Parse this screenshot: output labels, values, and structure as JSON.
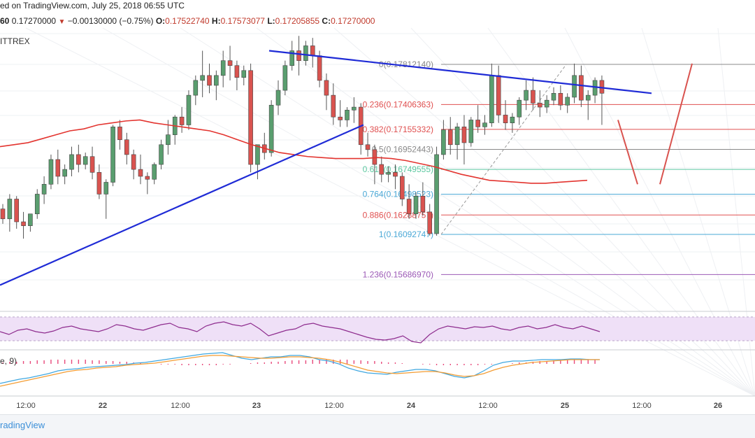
{
  "header": {
    "text": "ed on TradingView.com, July 25, 2018 06:55 UTC"
  },
  "ohlc": {
    "interval": "60",
    "last": "0.17270000",
    "change": "−0.00130000 (−0.75%)",
    "o_label": "O:",
    "o": "0.17522740",
    "h_label": "H:",
    "h": "0.17573077",
    "l_label": "L:",
    "l": "0.17205855",
    "c_label": "C:",
    "c": "0.17270000"
  },
  "exchange": "ITTREX",
  "footer": {
    "brand": "radingView"
  },
  "macd_label": "e, 9)",
  "colors": {
    "bull": "#5a9e6f",
    "bear": "#d9534f",
    "ma": "#e3342f",
    "trend": "#1f2bd6",
    "fib_red": "#e05050",
    "fib_gray": "#888888",
    "fib_green": "#5cc8a0",
    "fib_blue": "#4aa8d6",
    "fib_purple": "#9b59b6",
    "rsi_fill": "#efe0f7",
    "rsi_line": "#8e2c8e",
    "macd_blue": "#3fa7e0",
    "macd_orange": "#f39c33",
    "macd_hist": "#e8497b"
  },
  "chart_data": {
    "type": "candlestick",
    "x_ticks": [
      "12:00",
      "22",
      "12:00",
      "23",
      "12:00",
      "24",
      "12:00",
      "25",
      "12:00",
      "26"
    ],
    "fib_levels": [
      {
        "label": "0(0.17812140)",
        "value": 0.1781214,
        "color": "fib_gray"
      },
      {
        "label": "0.236(0.17406363)",
        "value": 0.17406363,
        "color": "fib_red"
      },
      {
        "label": "0.382(0.17155332)",
        "value": 0.17155332,
        "color": "fib_red"
      },
      {
        "label": "0.5(0.16952443)",
        "value": 0.16952443,
        "color": "fib_gray"
      },
      {
        "label": "0.618(0.16749555)",
        "value": 0.16749555,
        "color": "fib_green"
      },
      {
        "label": "0.764(0.16498523)",
        "value": 0.16498523,
        "color": "fib_blue"
      },
      {
        "label": "0.886(0.16288757)",
        "value": 0.16288757,
        "color": "fib_red"
      },
      {
        "label": "1(0.16092747)",
        "value": 0.16092747,
        "color": "fib_blue"
      },
      {
        "label": "1.236(0.15686970)",
        "value": 0.1568697,
        "color": "fib_purple"
      }
    ],
    "candles": [
      [
        0.1635,
        0.164,
        0.1625,
        0.162
      ],
      [
        0.1625,
        0.165,
        0.1645,
        0.1612
      ],
      [
        0.1645,
        0.1648,
        0.1622,
        0.1615
      ],
      [
        0.1622,
        0.1632,
        0.1618,
        0.1605
      ],
      [
        0.1618,
        0.1628,
        0.163,
        0.1612
      ],
      [
        0.163,
        0.1655,
        0.165,
        0.1625
      ],
      [
        0.165,
        0.1668,
        0.166,
        0.164
      ],
      [
        0.166,
        0.169,
        0.1685,
        0.1655
      ],
      [
        0.1685,
        0.1695,
        0.1668,
        0.166
      ],
      [
        0.1668,
        0.168,
        0.1675,
        0.166
      ],
      [
        0.1675,
        0.1698,
        0.169,
        0.1668
      ],
      [
        0.169,
        0.17,
        0.168,
        0.1672
      ],
      [
        0.168,
        0.1692,
        0.1688,
        0.1675
      ],
      [
        0.1688,
        0.1698,
        0.1672,
        0.1665
      ],
      [
        0.1672,
        0.168,
        0.165,
        0.1645
      ],
      [
        0.165,
        0.1665,
        0.1662,
        0.1625
      ],
      [
        0.1662,
        0.172,
        0.1718,
        0.1658
      ],
      [
        0.1718,
        0.1725,
        0.1705,
        0.1695
      ],
      [
        0.1705,
        0.1712,
        0.169,
        0.168
      ],
      [
        0.169,
        0.1695,
        0.1675,
        0.1665
      ],
      [
        0.1675,
        0.169,
        0.1668,
        0.166
      ],
      [
        0.1668,
        0.1672,
        0.1665,
        0.165
      ],
      [
        0.1665,
        0.1682,
        0.168,
        0.166
      ],
      [
        0.168,
        0.1705,
        0.17,
        0.1675
      ],
      [
        0.17,
        0.1725,
        0.171,
        0.169
      ],
      [
        0.171,
        0.173,
        0.1728,
        0.17
      ],
      [
        0.1728,
        0.1738,
        0.172,
        0.1712
      ],
      [
        0.172,
        0.1755,
        0.175,
        0.1715
      ],
      [
        0.175,
        0.177,
        0.1765,
        0.174
      ],
      [
        0.1765,
        0.1795,
        0.177,
        0.1748
      ],
      [
        0.177,
        0.1782,
        0.176,
        0.1752
      ],
      [
        0.176,
        0.1775,
        0.177,
        0.1745
      ],
      [
        0.177,
        0.1795,
        0.1785,
        0.1758
      ],
      [
        0.1785,
        0.18,
        0.178,
        0.1765
      ],
      [
        0.178,
        0.1785,
        0.1768,
        0.1755
      ],
      [
        0.1768,
        0.178,
        0.1775,
        0.176
      ],
      [
        0.1775,
        0.1782,
        0.168,
        0.1672
      ],
      [
        0.168,
        0.169,
        0.17,
        0.1665
      ],
      [
        0.17,
        0.1712,
        0.1692,
        0.1685
      ],
      [
        0.1692,
        0.1745,
        0.174,
        0.1688
      ],
      [
        0.174,
        0.1765,
        0.1755,
        0.173
      ],
      [
        0.1755,
        0.1785,
        0.178,
        0.175
      ],
      [
        0.178,
        0.1805,
        0.1795,
        0.1775
      ],
      [
        0.1795,
        0.181,
        0.1785,
        0.177
      ],
      [
        0.1785,
        0.1805,
        0.18,
        0.178
      ],
      [
        0.18,
        0.1808,
        0.179,
        0.1778
      ],
      [
        0.179,
        0.1795,
        0.1765,
        0.1758
      ],
      [
        0.1765,
        0.1772,
        0.175,
        0.1735
      ],
      [
        0.175,
        0.1762,
        0.1728,
        0.172
      ],
      [
        0.1728,
        0.1745,
        0.1725,
        0.1718
      ],
      [
        0.1725,
        0.1738,
        0.1735,
        0.1718
      ],
      [
        0.1735,
        0.1748,
        0.1738,
        0.1722
      ],
      [
        0.1738,
        0.1742,
        0.17,
        0.169
      ],
      [
        0.17,
        0.1712,
        0.1695,
        0.1688
      ],
      [
        0.1695,
        0.17,
        0.168,
        0.166
      ],
      [
        0.168,
        0.1688,
        0.167,
        0.1662
      ],
      [
        0.167,
        0.1678,
        0.1672,
        0.1662
      ],
      [
        0.1672,
        0.168,
        0.1668,
        0.1655
      ],
      [
        0.1668,
        0.1672,
        0.1645,
        0.1638
      ],
      [
        0.1645,
        0.166,
        0.163,
        0.1625
      ],
      [
        0.163,
        0.1652,
        0.1648,
        0.1625
      ],
      [
        0.1648,
        0.1662,
        0.1632,
        0.1628
      ],
      [
        0.1632,
        0.164,
        0.161,
        0.1608
      ],
      [
        0.161,
        0.1698,
        0.169,
        0.1608
      ],
      [
        0.169,
        0.1725,
        0.1715,
        0.1685
      ],
      [
        0.1715,
        0.1728,
        0.17,
        0.169
      ],
      [
        0.17,
        0.1722,
        0.1718,
        0.1685
      ],
      [
        0.1718,
        0.173,
        0.1702,
        0.168
      ],
      [
        0.1702,
        0.1728,
        0.1725,
        0.1698
      ],
      [
        0.1725,
        0.174,
        0.1718,
        0.1712
      ],
      [
        0.1718,
        0.173,
        0.1722,
        0.171
      ],
      [
        0.1722,
        0.1782,
        0.177,
        0.1718
      ],
      [
        0.177,
        0.178,
        0.173,
        0.1722
      ],
      [
        0.173,
        0.1745,
        0.1722,
        0.1715
      ],
      [
        0.1722,
        0.1732,
        0.1728,
        0.1712
      ],
      [
        0.1728,
        0.1748,
        0.1745,
        0.172
      ],
      [
        0.1745,
        0.1765,
        0.1755,
        0.1735
      ],
      [
        0.1755,
        0.1768,
        0.1742,
        0.1735
      ],
      [
        0.1742,
        0.1755,
        0.1738,
        0.1728
      ],
      [
        0.1738,
        0.175,
        0.1745,
        0.1732
      ],
      [
        0.1745,
        0.1758,
        0.1752,
        0.174
      ],
      [
        0.1752,
        0.176,
        0.174,
        0.1735
      ],
      [
        0.174,
        0.1752,
        0.1748,
        0.1732
      ],
      [
        0.1748,
        0.1782,
        0.177,
        0.1742
      ],
      [
        0.177,
        0.178,
        0.1745,
        0.1738
      ],
      [
        0.1745,
        0.1755,
        0.175,
        0.1725
      ],
      [
        0.175,
        0.1768,
        0.1765,
        0.1742
      ],
      [
        0.1765,
        0.177,
        0.1752,
        0.172
      ]
    ],
    "ma_values": [
      0.1698,
      0.17,
      0.1702,
      0.1706,
      0.171,
      0.1714,
      0.1716,
      0.172,
      0.1722,
      0.1724,
      0.1725,
      0.1722,
      0.172,
      0.1718,
      0.1716,
      0.1714,
      0.171,
      0.1705,
      0.17,
      0.1696,
      0.1692,
      0.169,
      0.1688,
      0.1687,
      0.1686,
      0.1686,
      0.1686,
      0.1687,
      0.1686,
      0.1684,
      0.1681,
      0.1678,
      0.1674,
      0.167,
      0.1667,
      0.1664,
      0.1663,
      0.1662,
      0.1661,
      0.1661,
      0.1662,
      0.1663,
      0.1664
    ],
    "annotations": {
      "proj_down": [
        0.1725,
        0.166
      ],
      "proj_up": [
        0.166,
        0.1782
      ]
    }
  }
}
